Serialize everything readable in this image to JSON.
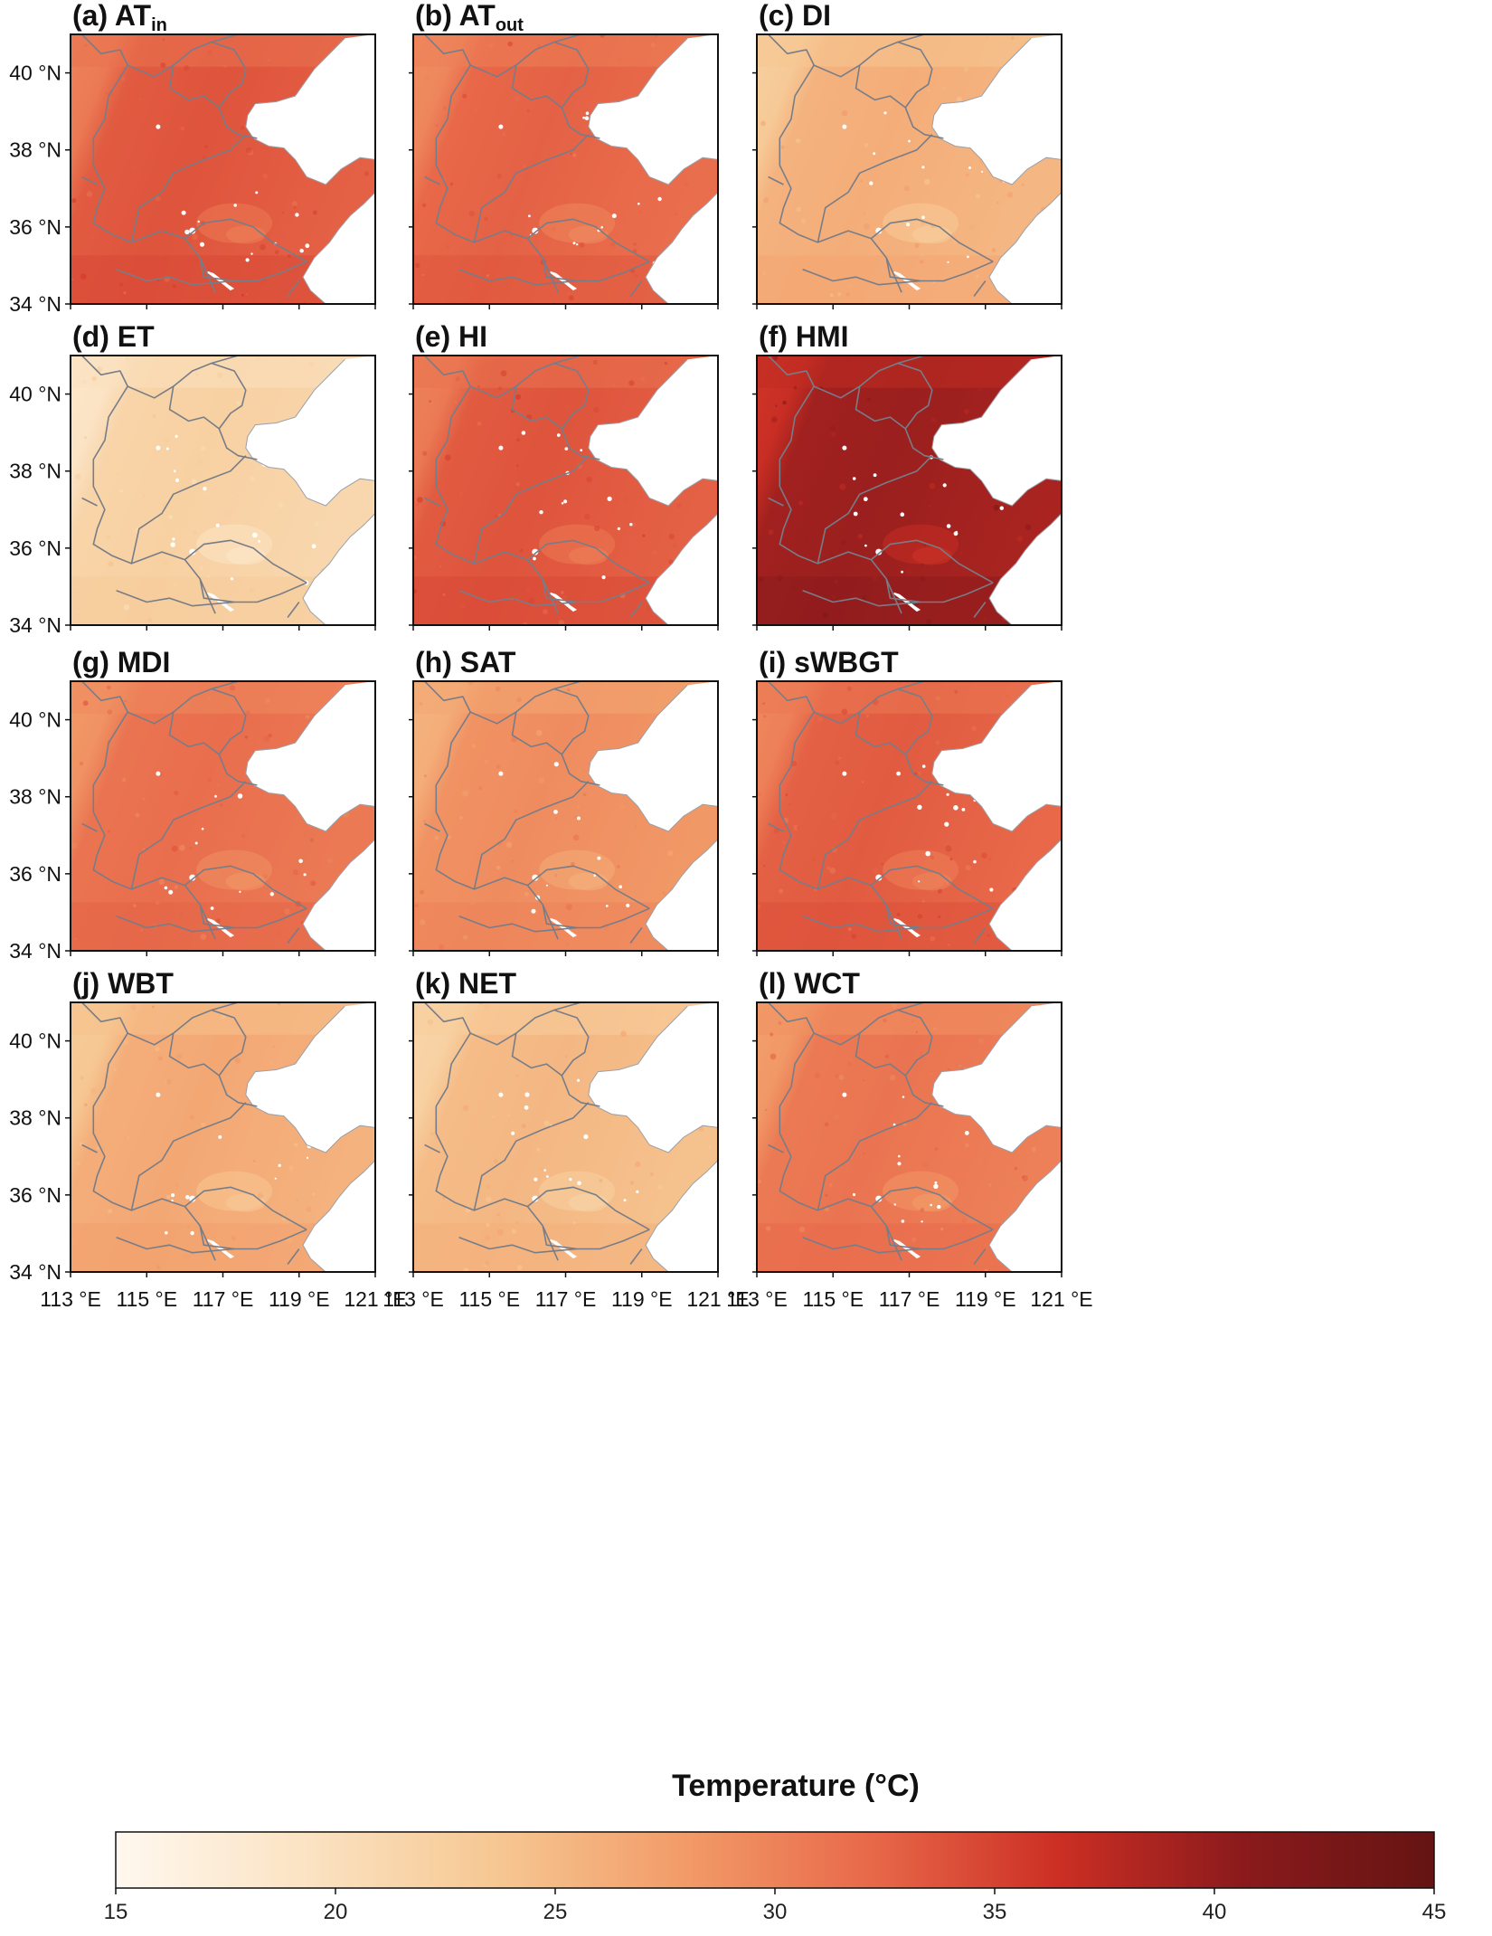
{
  "chart_data": {
    "type": "heatmap",
    "description_units": "Temperature (°C)",
    "panels": [
      {
        "label": "(a) AT",
        "sub": "in",
        "mean": 33.5
      },
      {
        "label": "(b) AT",
        "sub": "out",
        "mean": 32.5
      },
      {
        "label": "(c) DI",
        "sub": "",
        "mean": 26.0
      },
      {
        "label": "(d) ET",
        "sub": "",
        "mean": 22.0
      },
      {
        "label": "(e) HI",
        "sub": "",
        "mean": 33.5
      },
      {
        "label": "(f) HMI",
        "sub": "",
        "mean": 39.5
      },
      {
        "label": "(g) MDI",
        "sub": "",
        "mean": 31.5
      },
      {
        "label": "(h) SAT",
        "sub": "",
        "mean": 29.0
      },
      {
        "label": "(i) sWBGT",
        "sub": "",
        "mean": 33.0
      },
      {
        "label": "(j) WBT",
        "sub": "",
        "mean": 26.5
      },
      {
        "label": "(k) NET",
        "sub": "",
        "mean": 25.0
      },
      {
        "label": "(l) WCT",
        "sub": "",
        "mean": 31.0
      }
    ],
    "x_axis": {
      "ticks": [
        113,
        115,
        117,
        119,
        121
      ],
      "labels": [
        "113 °E",
        "115 °E",
        "117 °E",
        "119 °E",
        "121 °E"
      ],
      "range": [
        113,
        121
      ]
    },
    "y_axis": {
      "ticks": [
        34,
        36,
        38,
        40
      ],
      "labels": [
        "34 °N",
        "36 °N",
        "38 °N",
        "40 °N"
      ],
      "range": [
        34,
        41
      ]
    },
    "colorbar": {
      "title": "Temperature (°C)",
      "min": 15,
      "max": 45,
      "ticks": [
        15,
        20,
        25,
        30,
        35,
        40,
        45
      ],
      "tick_labels": [
        "15",
        "20",
        "25",
        "30",
        "35",
        "40",
        "45"
      ],
      "colors": [
        "#fff8ef",
        "#fbe3c3",
        "#f6c893",
        "#f29c69",
        "#e8694a",
        "#cc2f24",
        "#8a1a1c",
        "#651413"
      ]
    }
  },
  "colors": {
    "border": "#777d88",
    "sea": "#ffffff",
    "frame": "#111111"
  }
}
